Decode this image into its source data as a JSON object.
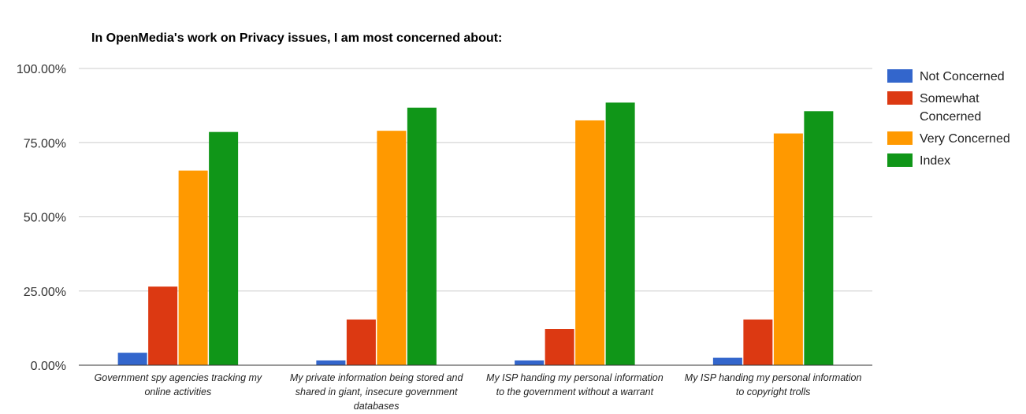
{
  "chart_data": {
    "type": "bar",
    "title": "In OpenMedia's work on Privacy issues, I am most concerned about:",
    "ylim": [
      0,
      100
    ],
    "yticks": [
      "100.00%",
      "75.00%",
      "50.00%",
      "25.00%",
      "0.00%"
    ],
    "ytick_values": [
      100,
      75,
      50,
      25,
      0
    ],
    "grid": true,
    "legend_position": "right",
    "categories": [
      [
        "Government spy agencies tracking my",
        "online activities"
      ],
      [
        "My private information being stored and",
        "shared in giant, insecure government",
        "databases"
      ],
      [
        "My ISP handing my personal information",
        "to the government without a warrant"
      ],
      [
        "My ISP handing my personal information",
        "to copyright trolls"
      ]
    ],
    "series": [
      {
        "name": "Not Concerned",
        "legend_lines": [
          "Not Concerned"
        ],
        "color": "#3366cc",
        "values": [
          4.2,
          1.6,
          1.6,
          2.5
        ]
      },
      {
        "name": "Somewhat Concerned",
        "legend_lines": [
          "Somewhat",
          "Concerned"
        ],
        "color": "#dc3912",
        "values": [
          26.5,
          15.4,
          12.2,
          15.4
        ]
      },
      {
        "name": "Very Concerned",
        "legend_lines": [
          "Very Concerned"
        ],
        "color": "#ff9900",
        "values": [
          65.6,
          79.0,
          82.5,
          78.1
        ]
      },
      {
        "name": "Index",
        "legend_lines": [
          "Index"
        ],
        "color": "#109618",
        "values": [
          78.6,
          86.8,
          88.5,
          85.6
        ]
      }
    ]
  }
}
